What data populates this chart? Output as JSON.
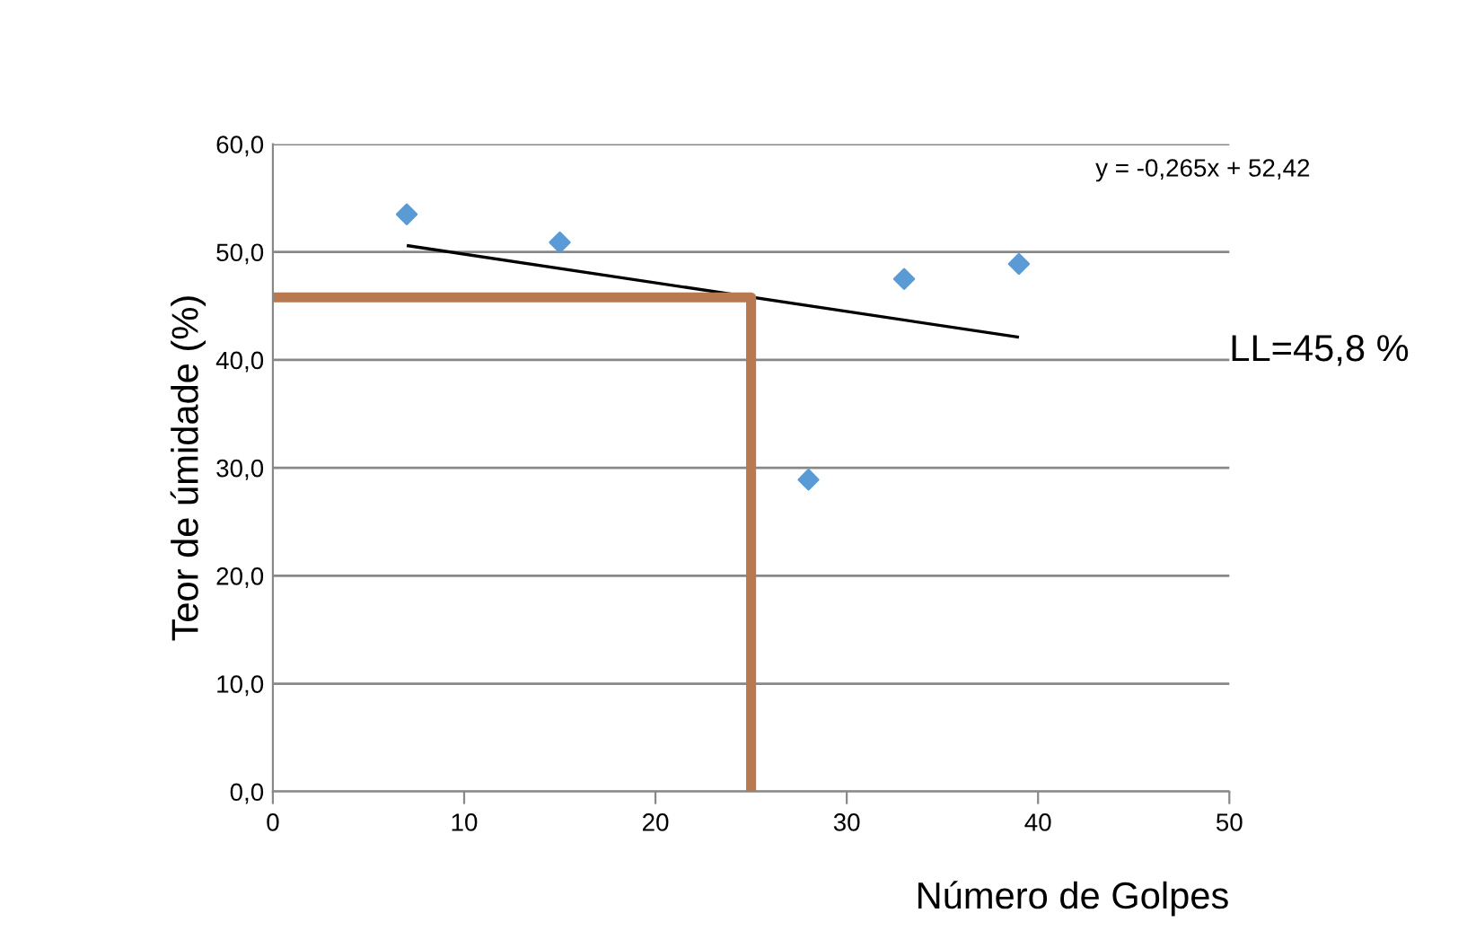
{
  "chart_data": {
    "type": "scatter",
    "xlabel": "Número de Golpes",
    "ylabel": "Teor de úmidade (%)",
    "xlim": [
      0,
      50
    ],
    "xticks": [
      0,
      10,
      20,
      30,
      40,
      50
    ],
    "ylim": [
      0,
      60
    ],
    "yticks": [
      {
        "value": 0,
        "label": "0,0"
      },
      {
        "value": 10,
        "label": "10,0"
      },
      {
        "value": 20,
        "label": "20,0"
      },
      {
        "value": 30,
        "label": "30,0"
      },
      {
        "value": 40,
        "label": "40,0"
      },
      {
        "value": 50,
        "label": "50,0"
      },
      {
        "value": 60,
        "label": "60,0"
      }
    ],
    "grid": "y",
    "marker": "diamond",
    "series": [
      {
        "color": "#5b9bd5",
        "x": [
          7,
          15,
          28,
          33,
          39
        ],
        "values": [
          53.5,
          50.9,
          28.9,
          47.5,
          48.9
        ]
      },
      {
        "type": "line",
        "color": "#000000",
        "marker": "none",
        "x": [
          7,
          39
        ],
        "values": [
          50.6,
          42.1
        ]
      },
      {
        "type": "line",
        "color": "#b87850",
        "marker": "none",
        "x": [
          0,
          25,
          25
        ],
        "values": [
          45.8,
          45.8,
          0
        ]
      }
    ],
    "annotations": [
      "y = -0,265x + 52,42",
      "LL=45,8 %"
    ]
  }
}
